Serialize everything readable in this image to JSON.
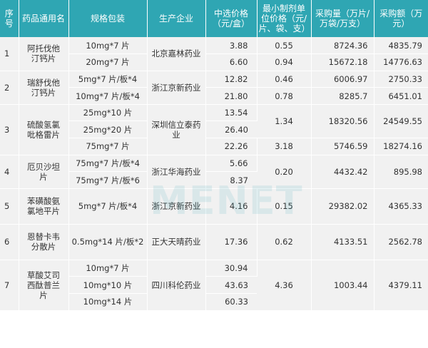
{
  "headers": {
    "seq": "序号",
    "name": "药品通用名",
    "spec": "规格包装",
    "company": "生产企业",
    "price": "中选价格（元/盒）",
    "unit_price": "最小制剂单位价格（元/片、袋、支）",
    "quantity": "采购量（万片/万袋/万支）",
    "amount": "采购额（万元）"
  },
  "groups": [
    {
      "seq": "1",
      "name": "阿托伐他汀钙片",
      "company": "北京嘉林药业",
      "rows": [
        {
          "spec": "10mg*7 片",
          "price": "3.88",
          "unit": "0.55",
          "qty": "8724.36",
          "amt": "4835.79"
        },
        {
          "spec": "20mg*7 片",
          "price": "6.60",
          "unit": "0.94",
          "qty": "15672.18",
          "amt": "14776.63"
        }
      ]
    },
    {
      "seq": "2",
      "name": "瑞舒伐他汀钙片",
      "company": "浙江京新药业",
      "rows": [
        {
          "spec": "5mg*7 片/板*4",
          "price": "12.82",
          "unit": "0.46",
          "qty": "6006.97",
          "amt": "2750.33"
        },
        {
          "spec": "10mg*7 片/板*4",
          "price": "21.80",
          "unit": "0.78",
          "qty": "8285.7",
          "amt": "6451.01"
        }
      ]
    },
    {
      "seq": "3",
      "name": "硫酸氢氯吡格雷片",
      "company": "深圳信立泰药业",
      "rows": [
        {
          "spec": "25mg*10 片",
          "price": "13.54"
        },
        {
          "spec": "25mg*20 片",
          "price": "26.40"
        },
        {
          "spec": "75mg*7 片",
          "price": "22.26",
          "unit": "3.18",
          "qty": "5746.59",
          "amt": "18274.16"
        }
      ],
      "merged": {
        "unit": "1.34",
        "qty": "18320.56",
        "amt": "24549.55"
      }
    },
    {
      "seq": "4",
      "name": "厄贝沙坦片",
      "company": "浙江华海药业",
      "rows": [
        {
          "spec": "75mg*7 片/板*4",
          "price": "5.66"
        },
        {
          "spec": "75mg*7 片/板*6",
          "price": "8.37"
        }
      ],
      "merged": {
        "unit": "0.20",
        "qty": "4432.42",
        "amt": "895.98"
      }
    },
    {
      "seq": "5",
      "name": "苯磺酸氨氯地平片",
      "company": "浙江京新药业",
      "rows": [
        {
          "spec": "5mg*7 片/板*4",
          "price": "4.16",
          "unit": "0.15",
          "qty": "29382.02",
          "amt": "4365.33"
        }
      ]
    },
    {
      "seq": "6",
      "name": "恩替卡韦分散片",
      "company": "正大天晴药业",
      "rows": [
        {
          "spec": "0.5mg*14 片/板*2",
          "price": "17.36",
          "unit": "0.62",
          "qty": "4133.51",
          "amt": "2562.78"
        }
      ]
    },
    {
      "seq": "7",
      "name": "草酸艾司西酞普兰片",
      "company": "四川科伦药业",
      "rows": [
        {
          "spec": "10mg*7 片",
          "price": "30.94"
        },
        {
          "spec": "10mg*10 片",
          "price": "43.63"
        },
        {
          "spec": "10mg*14 片",
          "price": "60.33"
        }
      ],
      "merged": {
        "unit": "4.36",
        "qty": "1003.44",
        "amt": "4379.11"
      }
    }
  ],
  "watermark": "MENET",
  "colors": {
    "header_bg": "#2fa6b3",
    "cell_bg": "#f1f1f1",
    "text": "#333333"
  }
}
